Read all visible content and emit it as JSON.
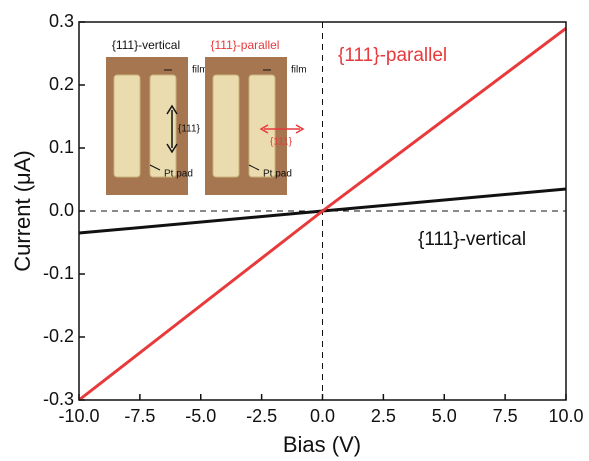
{
  "chart_data": {
    "type": "line",
    "x_label": "Bias (V)",
    "y_label": "Current (μA)",
    "x": [
      -10,
      0,
      10
    ],
    "series": [
      {
        "name": "{111}-parallel",
        "color": "#e8393b",
        "values": [
          -0.3,
          0,
          0.29
        ]
      },
      {
        "name": "{111}-vertical",
        "color": "#111111",
        "values": [
          -0.035,
          0,
          0.035
        ]
      }
    ],
    "xlim": [
      -10,
      10
    ],
    "xticks": [
      {
        "value": -10,
        "label": "-10.0"
      },
      -7.5,
      {
        "value": -5,
        "label": "-5.0"
      },
      -2.5,
      {
        "value": 0,
        "label": "0.0"
      },
      2.5,
      {
        "value": 5,
        "label": "5.0"
      },
      7.5,
      {
        "value": 10,
        "label": "10.0"
      }
    ],
    "ylim": [
      -0.3,
      0.3
    ],
    "yticks": [
      -0.3,
      -0.2,
      -0.1,
      {
        "value": 0,
        "label": "0.0"
      },
      0.1,
      0.2,
      0.3
    ],
    "insets": [
      {
        "title": "{111}-vertical",
        "film": "film",
        "direction": "{111}",
        "pad": "Pt pad"
      },
      {
        "title": "{111}-parallel",
        "film": "film",
        "direction": "{111}",
        "pad": "Pt pad"
      }
    ]
  }
}
